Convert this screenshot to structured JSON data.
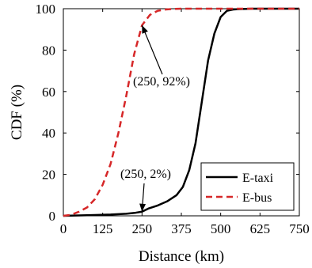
{
  "chart_data": {
    "type": "line",
    "title": "",
    "xlabel": "Distance (km)",
    "ylabel": "CDF (%)",
    "xlim": [
      0,
      750
    ],
    "ylim": [
      0,
      100
    ],
    "xticks": [
      0,
      125,
      250,
      375,
      500,
      625,
      750
    ],
    "yticks": [
      0,
      20,
      40,
      60,
      80,
      100
    ],
    "grid": false,
    "legend_position": "bottom-right",
    "series": [
      {
        "name": "E-taxi",
        "color": "#000000",
        "style": "solid",
        "x": [
          0,
          50,
          100,
          150,
          200,
          230,
          250,
          270,
          300,
          330,
          360,
          380,
          400,
          420,
          440,
          460,
          480,
          500,
          520,
          540,
          560,
          580,
          600,
          625,
          650,
          700,
          750
        ],
        "y": [
          0,
          0.2,
          0.4,
          0.6,
          1,
          1.5,
          2,
          3.5,
          5,
          7,
          10,
          14,
          22,
          35,
          55,
          75,
          88,
          96,
          99,
          99.6,
          99.8,
          99.9,
          100,
          100,
          100,
          100,
          100
        ]
      },
      {
        "name": "E-bus",
        "color": "#d62728",
        "style": "dashed",
        "x": [
          0,
          25,
          50,
          75,
          100,
          125,
          150,
          175,
          200,
          225,
          250,
          275,
          300,
          325,
          350,
          375,
          400,
          500,
          625,
          750
        ],
        "y": [
          0,
          0.5,
          2,
          4,
          8,
          15,
          25,
          40,
          58,
          78,
          92,
          97,
          99,
          99.6,
          99.9,
          100,
          100,
          100,
          100,
          100
        ]
      }
    ],
    "annotations": [
      {
        "text": "(250, 92%)",
        "x": 250,
        "y": 92
      },
      {
        "text": "(250, 2%)",
        "x": 250,
        "y": 2
      }
    ]
  }
}
